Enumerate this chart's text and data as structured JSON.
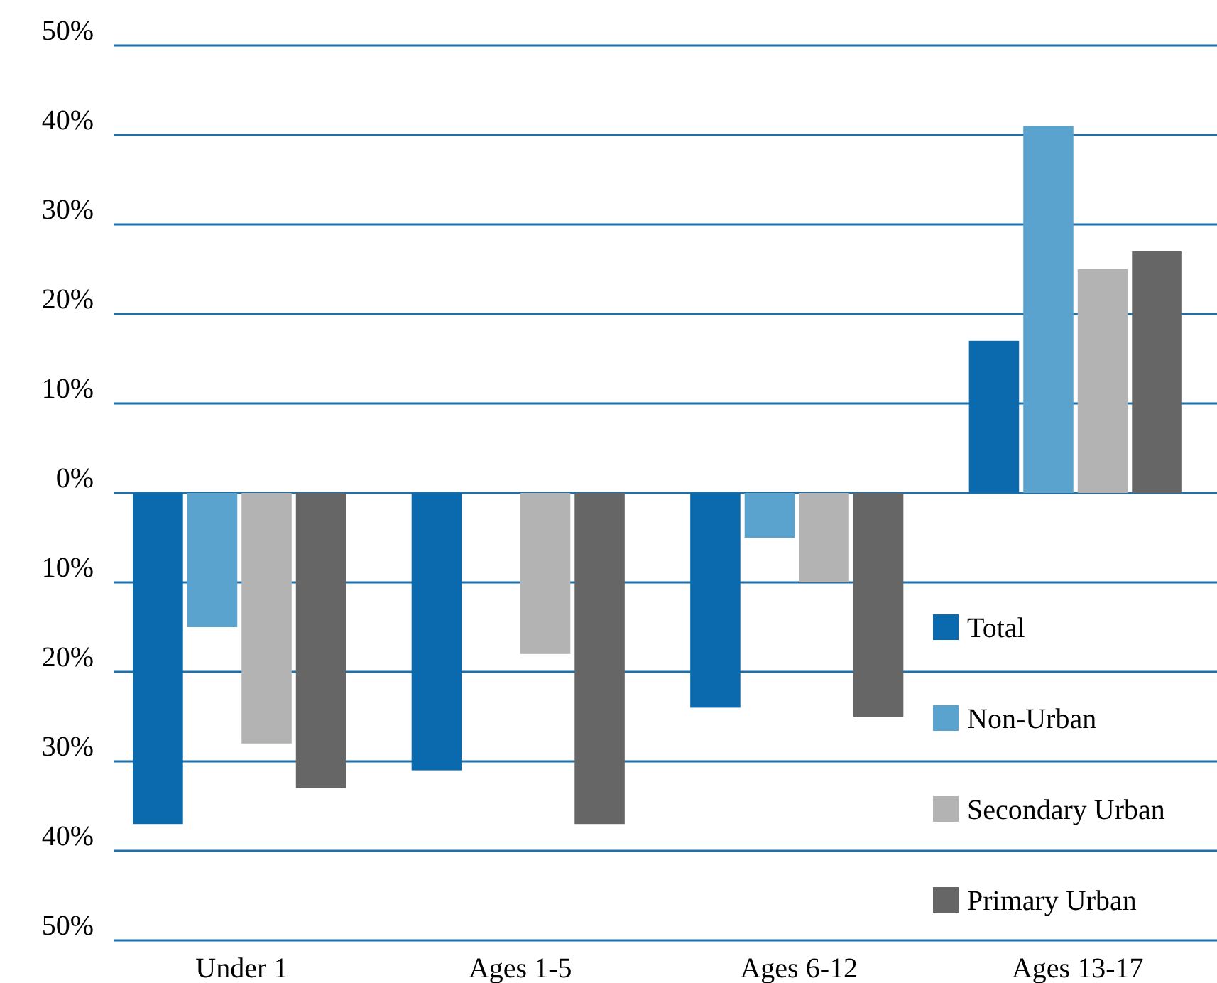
{
  "chart_data": {
    "type": "bar",
    "categories": [
      "Under 1",
      "Ages 1-5",
      "Ages 6-12",
      "Ages 13-17"
    ],
    "series": [
      {
        "name": "Total",
        "color": "#0a6aad",
        "values": [
          -37,
          -31,
          -24,
          17
        ]
      },
      {
        "name": "Non-Urban",
        "color": "#5ba3cf",
        "values": [
          -15,
          0,
          -5,
          41
        ]
      },
      {
        "name": "Secondary Urban",
        "color": "#b3b3b3",
        "values": [
          -28,
          -18,
          -10,
          25
        ]
      },
      {
        "name": "Primary Urban",
        "color": "#666666",
        "values": [
          -33,
          -37,
          -25,
          27
        ]
      }
    ],
    "ylim": [
      -50,
      50
    ],
    "yticks": [
      {
        "value": -50,
        "label": "50%"
      },
      {
        "value": -40,
        "label": "40%"
      },
      {
        "value": -30,
        "label": "30%"
      },
      {
        "value": -20,
        "label": "20%"
      },
      {
        "value": -10,
        "label": "10%"
      },
      {
        "value": 0,
        "label": "0%"
      },
      {
        "value": 10,
        "label": "10%"
      },
      {
        "value": 20,
        "label": "20%"
      },
      {
        "value": 30,
        "label": "30%"
      },
      {
        "value": 40,
        "label": "40%"
      },
      {
        "value": 50,
        "label": "50%"
      }
    ],
    "grid": "y",
    "legend": "bottom right"
  }
}
